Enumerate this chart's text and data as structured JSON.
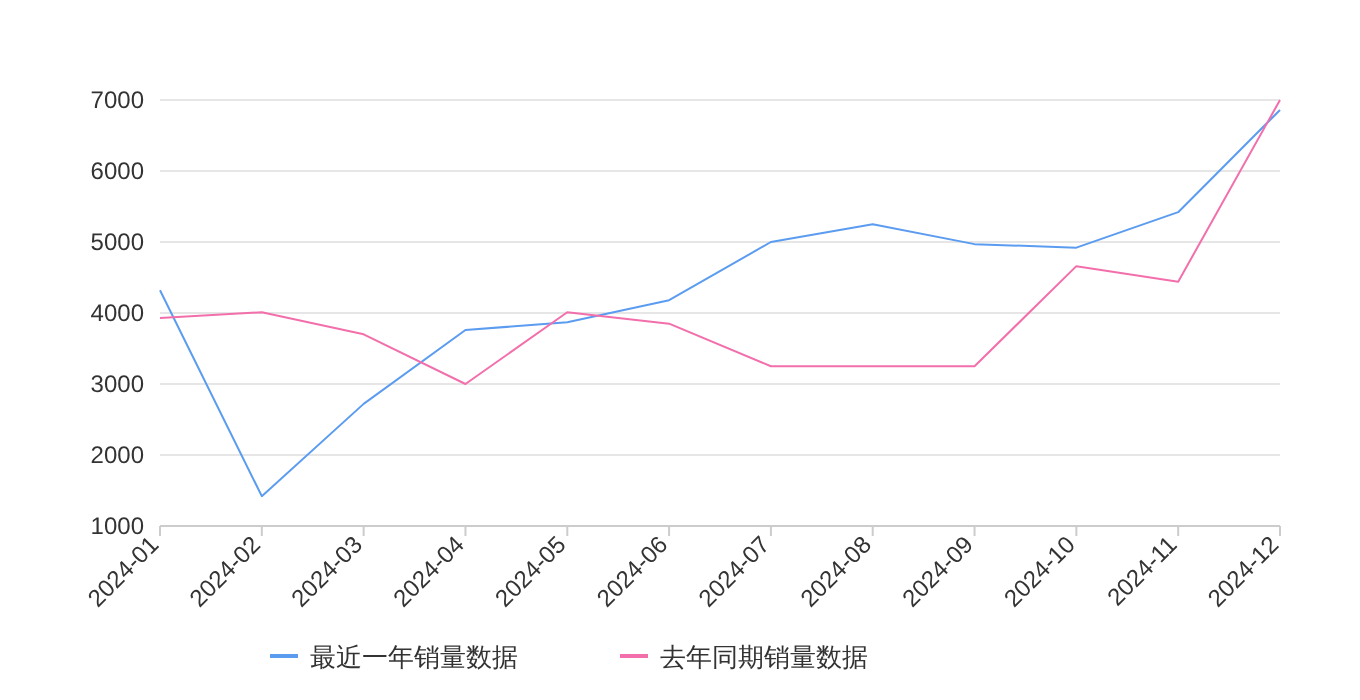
{
  "chart_data": {
    "type": "line",
    "categories": [
      "2024-01",
      "2024-02",
      "2024-03",
      "2024-04",
      "2024-05",
      "2024-06",
      "2024-07",
      "2024-08",
      "2024-09",
      "2024-10",
      "2024-11",
      "2024-12"
    ],
    "series": [
      {
        "name": "最近一年销量数据",
        "color": "#5b9cf0",
        "values": [
          4320,
          1420,
          2720,
          3760,
          3870,
          4180,
          5000,
          5250,
          4970,
          4920,
          5420,
          6860
        ]
      },
      {
        "name": "去年同期销量数据",
        "color": "#f26fab",
        "values": [
          3930,
          4010,
          3700,
          3000,
          4010,
          3850,
          3250,
          3250,
          3250,
          4660,
          4440,
          7000
        ]
      }
    ],
    "ylim": [
      1000,
      7000
    ],
    "yticks": [
      1000,
      2000,
      3000,
      4000,
      5000,
      6000,
      7000
    ],
    "grid": "y",
    "legend": "bottom"
  }
}
